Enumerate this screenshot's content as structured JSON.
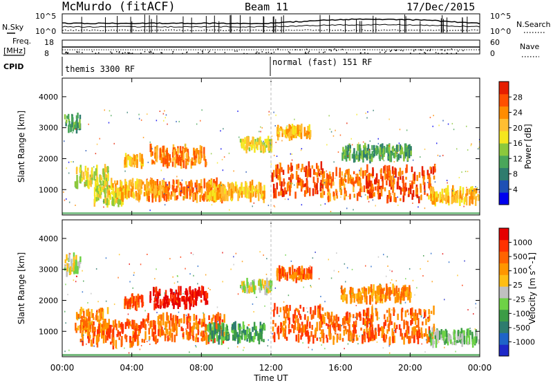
{
  "header": {
    "station": "McMurdo (fitACF)",
    "beam": "Beam 11",
    "date": "17/Dec/2015"
  },
  "top_panels": {
    "nsky_label": "N.Sky",
    "nsearch_label": "N.Search",
    "noise_ticks_left": [
      "10^5",
      "10^0"
    ],
    "noise_ticks_right": [
      "10^5",
      "10^0"
    ],
    "freq_label_line1": "Freq.",
    "freq_label_line2": "[MHz]",
    "freq_ticks": [
      "18",
      "8"
    ],
    "nave_label": "Nave",
    "nave_ticks": [
      "60",
      "0"
    ],
    "cpid_label": "CPID",
    "cpid_segments": [
      {
        "label": "themis 3300 RF",
        "start_hour": 0,
        "end_hour": 12
      },
      {
        "label": "normal (fast) 151 RF",
        "start_hour": 12,
        "end_hour": 24
      }
    ]
  },
  "chart_data": [
    {
      "type": "heatmap",
      "name": "power",
      "ylabel": "Slant Range [km]",
      "xlabel": "Time UT",
      "xlim_hours": [
        0,
        24
      ],
      "ylim": [
        180,
        4600
      ],
      "y_ticks": [
        "1000",
        "2000",
        "3000",
        "4000"
      ],
      "x_ticks": [
        "00:00",
        "04:00",
        "08:00",
        "12:00",
        "16:00",
        "20:00",
        "00:00"
      ],
      "colorbar": {
        "label": "Power [dB]",
        "ticks": [
          "4",
          "8",
          "12",
          "16",
          "20",
          "24",
          "28"
        ],
        "colors": [
          "#0000ee",
          "#1e50b4",
          "#2e7c6e",
          "#4aa65a",
          "#8cc83c",
          "#f5e61e",
          "#ffbe32",
          "#ff8c00",
          "#ff5000",
          "#e61e00"
        ]
      },
      "regions": [
        {
          "t": [
            0.1,
            1.0
          ],
          "r": [
            2900,
            3400
          ],
          "level": 3
        },
        {
          "t": [
            0.7,
            2.6
          ],
          "r": [
            1000,
            1700
          ],
          "level": 5
        },
        {
          "t": [
            1.8,
            3.5
          ],
          "r": [
            550,
            1050
          ],
          "level": 5
        },
        {
          "t": [
            2.5,
            5.8
          ],
          "r": [
            750,
            1250
          ],
          "level": 6
        },
        {
          "t": [
            3.5,
            4.6
          ],
          "r": [
            1800,
            2100
          ],
          "level": 6
        },
        {
          "t": [
            5.0,
            8.3
          ],
          "r": [
            1800,
            2350
          ],
          "level": 7
        },
        {
          "t": [
            4.8,
            9.3
          ],
          "r": [
            700,
            1250
          ],
          "level": 7
        },
        {
          "t": [
            8.3,
            11.6
          ],
          "r": [
            700,
            1200
          ],
          "level": 6
        },
        {
          "t": [
            10.2,
            12.0
          ],
          "r": [
            2300,
            2600
          ],
          "level": 5
        },
        {
          "t": [
            12.0,
            15.0
          ],
          "r": [
            800,
            1800
          ],
          "level": 8
        },
        {
          "t": [
            12.3,
            14.3
          ],
          "r": [
            2700,
            3000
          ],
          "level": 6
        },
        {
          "t": [
            14.8,
            17.8
          ],
          "r": [
            700,
            1600
          ],
          "level": 7
        },
        {
          "t": [
            17.4,
            21.4
          ],
          "r": [
            650,
            1700
          ],
          "level": 8
        },
        {
          "t": [
            21.0,
            23.9
          ],
          "r": [
            600,
            1000
          ],
          "level": 6
        },
        {
          "t": [
            16.0,
            20.0
          ],
          "r": [
            2000,
            2400
          ],
          "level": 3
        }
      ]
    },
    {
      "type": "heatmap",
      "name": "velocity",
      "ylabel": "Slant Range [km]",
      "xlabel": "Time UT",
      "xlim_hours": [
        0,
        24
      ],
      "ylim": [
        180,
        4600
      ],
      "y_ticks": [
        "1000",
        "2000",
        "3000",
        "4000"
      ],
      "x_ticks": [
        "00:00",
        "04:00",
        "08:00",
        "12:00",
        "16:00",
        "20:00",
        "00:00"
      ],
      "colorbar": {
        "label": "Velocity [m s^-1]",
        "ticks": [
          "1000",
          "500",
          "100",
          "25",
          "-25",
          "-100",
          "-500",
          "-1000"
        ],
        "colors": [
          "#1e28c8",
          "#1e64c8",
          "#2e7c6e",
          "#3c9c46",
          "#6ed246",
          "#c0c0c0",
          "#ffbe14",
          "#ff9600",
          "#ff6400",
          "#ff3200",
          "#e60000"
        ]
      },
      "regions": [
        {
          "t": [
            0.1,
            1.0
          ],
          "r": [
            2900,
            3400
          ],
          "level": 5
        },
        {
          "t": [
            0.7,
            2.6
          ],
          "r": [
            1000,
            1700
          ],
          "level": 7
        },
        {
          "t": [
            1.0,
            4.8
          ],
          "r": [
            550,
            1300
          ],
          "level": 8
        },
        {
          "t": [
            3.5,
            4.6
          ],
          "r": [
            1800,
            2100
          ],
          "level": 8
        },
        {
          "t": [
            5.0,
            8.3
          ],
          "r": [
            1800,
            2350
          ],
          "level": 10
        },
        {
          "t": [
            4.8,
            9.3
          ],
          "r": [
            700,
            1500
          ],
          "level": 8
        },
        {
          "t": [
            8.3,
            11.6
          ],
          "r": [
            700,
            1200
          ],
          "level": 3
        },
        {
          "t": [
            10.2,
            12.0
          ],
          "r": [
            2300,
            2600
          ],
          "level": 5
        },
        {
          "t": [
            12.0,
            15.0
          ],
          "r": [
            700,
            1800
          ],
          "level": 8
        },
        {
          "t": [
            12.3,
            14.3
          ],
          "r": [
            2700,
            3000
          ],
          "level": 8
        },
        {
          "t": [
            14.8,
            17.8
          ],
          "r": [
            700,
            1600
          ],
          "level": 8
        },
        {
          "t": [
            17.4,
            21.4
          ],
          "r": [
            650,
            1700
          ],
          "level": 8
        },
        {
          "t": [
            21.0,
            23.9
          ],
          "r": [
            600,
            1000
          ],
          "level": 4
        },
        {
          "t": [
            16.0,
            20.0
          ],
          "r": [
            2000,
            2400
          ],
          "level": 7
        }
      ]
    }
  ]
}
